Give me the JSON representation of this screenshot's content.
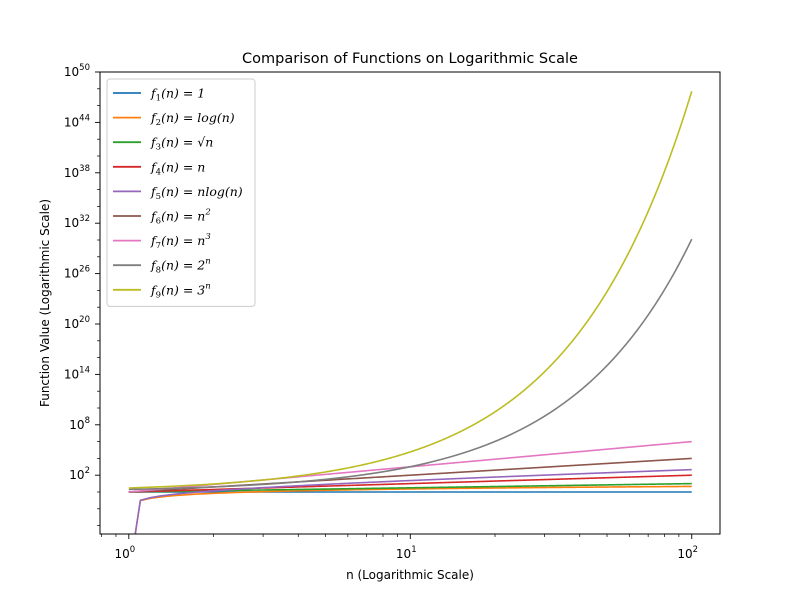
{
  "chart_data": {
    "type": "line",
    "title": "Comparison of Functions on Logarithmic Scale",
    "xlabel": "n (Logarithmic Scale)",
    "ylabel": "Function Value (Logarithmic Scale)",
    "xscale": "log",
    "yscale": "log",
    "xlim": [
      0.79,
      126
    ],
    "ylim": [
      1e-05,
      1e+50
    ],
    "x_ticks": [
      {
        "base": "10",
        "exp": "0",
        "value": 1
      },
      {
        "base": "10",
        "exp": "1",
        "value": 10
      },
      {
        "base": "10",
        "exp": "2",
        "value": 100
      }
    ],
    "y_ticks": [
      {
        "base": "10",
        "exp": "2",
        "value": 2
      },
      {
        "base": "10",
        "exp": "8",
        "value": 8
      },
      {
        "base": "10",
        "exp": "14",
        "value": 14
      },
      {
        "base": "10",
        "exp": "20",
        "value": 20
      },
      {
        "base": "10",
        "exp": "26",
        "value": 26
      },
      {
        "base": "10",
        "exp": "32",
        "value": 32
      },
      {
        "base": "10",
        "exp": "38",
        "value": 38
      },
      {
        "base": "10",
        "exp": "44",
        "value": 44
      },
      {
        "base": "10",
        "exp": "50",
        "value": 50
      }
    ],
    "x_range": [
      1,
      100
    ],
    "grid": false,
    "legend_position": "upper-left",
    "series": [
      {
        "name": "f1(n) = 1",
        "func": "const",
        "color": "#1f77b4",
        "label": {
          "f": "f",
          "sub": "1",
          "arg": "(n) = ",
          "rm": "1",
          "sup": ""
        }
      },
      {
        "name": "f2(n) = log(n)",
        "func": "log",
        "color": "#ff7f0e",
        "label": {
          "f": "f",
          "sub": "2",
          "arg": "(n) = ",
          "rm": "log(n)",
          "sup": ""
        }
      },
      {
        "name": "f3(n) = √n",
        "func": "sqrt",
        "color": "#2ca02c",
        "label": {
          "f": "f",
          "sub": "3",
          "arg": "(n) = ",
          "rm": "√n",
          "sup": ""
        }
      },
      {
        "name": "f4(n) = n",
        "func": "linear",
        "color": "#d62728",
        "label": {
          "f": "f",
          "sub": "4",
          "arg": "(n) = ",
          "rm": "n",
          "sup": ""
        }
      },
      {
        "name": "f5(n) = nlog(n)",
        "func": "nlogn",
        "color": "#9467bd",
        "label": {
          "f": "f",
          "sub": "5",
          "arg": "(n) = ",
          "rm": "nlog(n)",
          "sup": ""
        }
      },
      {
        "name": "f6(n) = n^2",
        "func": "square",
        "color": "#8c564b",
        "label": {
          "f": "f",
          "sub": "6",
          "arg": "(n) = ",
          "rm": "n",
          "sup": "2"
        }
      },
      {
        "name": "f7(n) = n^3",
        "func": "cube",
        "color": "#e377c2",
        "label": {
          "f": "f",
          "sub": "7",
          "arg": "(n) = ",
          "rm": "n",
          "sup": "3"
        }
      },
      {
        "name": "f8(n) = 2^n",
        "func": "exp2",
        "color": "#7f7f7f",
        "label": {
          "f": "f",
          "sub": "8",
          "arg": "(n) = ",
          "rm": "2",
          "sup": "n"
        }
      },
      {
        "name": "f9(n) = 3^n",
        "func": "exp3",
        "color": "#bcbd22",
        "label": {
          "f": "f",
          "sub": "9",
          "arg": "(n) = ",
          "rm": "3",
          "sup": "n"
        }
      }
    ]
  }
}
